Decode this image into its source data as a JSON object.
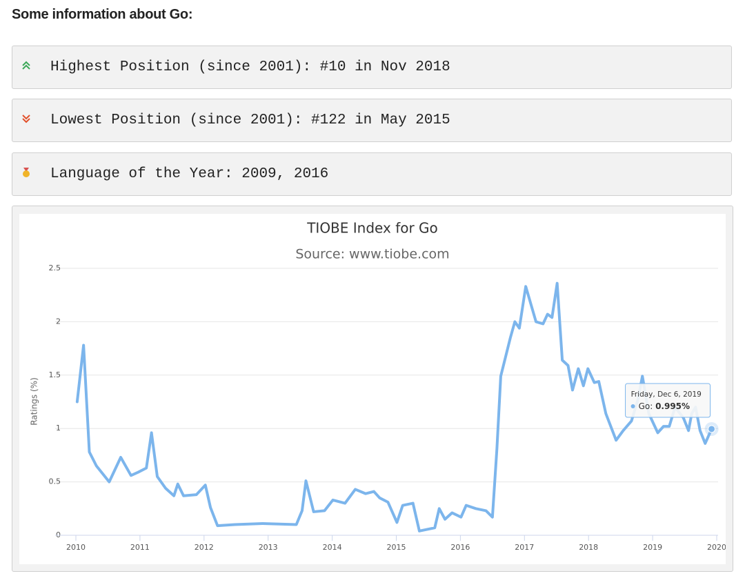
{
  "header": {
    "title": "Some information about Go:"
  },
  "info": [
    "Highest Position (since 2001): #10 in Nov 2018",
    "Lowest Position (since 2001): #122 in May 2015",
    "Language of the Year: 2009, 2016"
  ],
  "chart_data": {
    "type": "line",
    "title": "TIOBE Index for Go",
    "subtitle": "Source: www.tiobe.com",
    "ylabel": "Ratings (%)",
    "x": [
      2010.02,
      2010.12,
      2010.21,
      2010.32,
      2010.52,
      2010.7,
      2010.86,
      2010.97,
      2011.1,
      2011.18,
      2011.27,
      2011.4,
      2011.53,
      2011.59,
      2011.68,
      2011.88,
      2012.02,
      2012.1,
      2012.21,
      2012.48,
      2012.91,
      2013.44,
      2013.53,
      2013.59,
      2013.71,
      2013.88,
      2014.01,
      2014.2,
      2014.36,
      2014.52,
      2014.65,
      2014.74,
      2014.87,
      2015.01,
      2015.1,
      2015.26,
      2015.36,
      2015.6,
      2015.67,
      2015.76,
      2015.87,
      2016.01,
      2016.09,
      2016.24,
      2016.4,
      2016.5,
      2016.57,
      2016.63,
      2016.78,
      2016.85,
      2016.92,
      2017.02,
      2017.18,
      2017.29,
      2017.36,
      2017.43,
      2017.51,
      2017.59,
      2017.68,
      2017.75,
      2017.84,
      2017.92,
      2017.99,
      2018.09,
      2018.16,
      2018.27,
      2018.43,
      2018.54,
      2018.67,
      2018.77,
      2018.84,
      2018.94,
      2019.08,
      2019.17,
      2019.26,
      2019.35,
      2019.48,
      2019.56,
      2019.61,
      2019.67,
      2019.74,
      2019.82,
      2019.92
    ],
    "series": [
      {
        "name": "Go",
        "color": "#7cb5ec",
        "values": [
          1.25,
          1.78,
          0.78,
          0.65,
          0.5,
          0.73,
          0.56,
          0.59,
          0.63,
          0.96,
          0.55,
          0.44,
          0.37,
          0.48,
          0.37,
          0.38,
          0.47,
          0.26,
          0.09,
          0.1,
          0.11,
          0.1,
          0.23,
          0.51,
          0.22,
          0.23,
          0.33,
          0.3,
          0.43,
          0.39,
          0.41,
          0.35,
          0.31,
          0.12,
          0.28,
          0.3,
          0.04,
          0.07,
          0.25,
          0.15,
          0.21,
          0.17,
          0.28,
          0.25,
          0.23,
          0.17,
          0.81,
          1.49,
          1.85,
          2.0,
          1.94,
          2.33,
          2.0,
          1.98,
          2.07,
          2.04,
          2.36,
          1.64,
          1.59,
          1.36,
          1.56,
          1.4,
          1.56,
          1.43,
          1.44,
          1.14,
          0.89,
          0.98,
          1.07,
          1.27,
          1.49,
          1.14,
          0.96,
          1.02,
          1.02,
          1.2,
          1.1,
          0.98,
          1.14,
          1.2,
          0.98,
          0.86,
          0.995
        ]
      }
    ],
    "xlim": [
      2010,
      2020
    ],
    "xticks": [
      2010,
      2011,
      2012,
      2013,
      2014,
      2015,
      2016,
      2017,
      2018,
      2019,
      2020
    ],
    "ylim": [
      0,
      2.5
    ],
    "yticks": [
      0,
      0.5,
      1,
      1.5,
      2,
      2.5
    ],
    "grid": true,
    "tooltip": {
      "date": "Friday, Dec 6, 2019",
      "value_label": "0.995%"
    }
  }
}
